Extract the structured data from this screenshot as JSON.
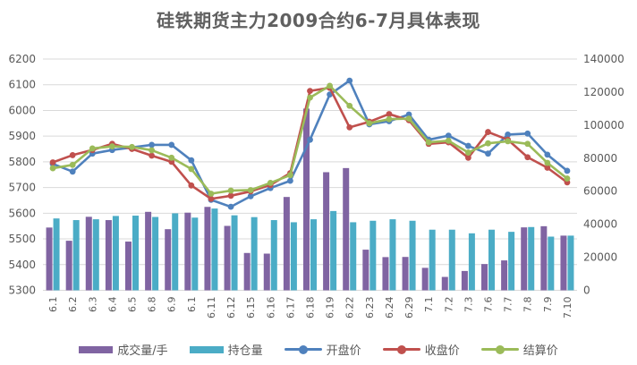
{
  "chart_data": {
    "type": "combo-bar-line",
    "title": "硅铁期货主力2009合约6-7月具体表现",
    "categories": [
      "6.1",
      "6.2",
      "6.3",
      "6.4",
      "6.5",
      "6.8",
      "6.9",
      "6.1",
      "6.11",
      "6.12",
      "6.15",
      "6.16",
      "6.17",
      "6.18",
      "6.19",
      "6.22",
      "6.23",
      "6.24",
      "6.29",
      "7.1",
      "7.2",
      "7.3",
      "7.6",
      "7.7",
      "7.8",
      "7.9",
      "7.10"
    ],
    "series": [
      {
        "key": "volume",
        "name": "成交量/手",
        "type": "bar",
        "axis": "right",
        "color": "#8064A2",
        "values": [
          38000,
          30000,
          44500,
          42500,
          29500,
          47500,
          37000,
          47000,
          50500,
          39000,
          22600,
          22200,
          56500,
          110000,
          71500,
          74000,
          24600,
          20100,
          20200,
          13600,
          8100,
          11700,
          15900,
          18100,
          38100,
          38800,
          33100
        ]
      },
      {
        "key": "open-interest",
        "name": "持仓量",
        "type": "bar",
        "axis": "right",
        "color": "#4BACC6",
        "values": [
          43500,
          42500,
          43000,
          45000,
          45200,
          44400,
          46600,
          44000,
          49500,
          45400,
          44300,
          42500,
          41200,
          43000,
          48000,
          41200,
          42100,
          43000,
          42100,
          36700,
          36700,
          34500,
          36700,
          35400,
          38300,
          32500,
          33100
        ]
      },
      {
        "key": "open",
        "name": "开盘价",
        "type": "line",
        "axis": "left",
        "color": "#4F81BD",
        "values": [
          5792,
          5762,
          5832,
          5846,
          5856,
          5866,
          5866,
          5806,
          5652,
          5625,
          5666,
          5698,
          5726,
          5886,
          6062,
          6116,
          5946,
          5958,
          5984,
          5886,
          5902,
          5862,
          5832,
          5906,
          5910,
          5828,
          5765
        ]
      },
      {
        "key": "close",
        "name": "收盘价",
        "type": "line",
        "axis": "left",
        "color": "#C0504D",
        "values": [
          5798,
          5826,
          5846,
          5870,
          5850,
          5824,
          5800,
          5708,
          5656,
          5668,
          5685,
          5710,
          5756,
          6076,
          6088,
          5934,
          5956,
          5986,
          5962,
          5870,
          5876,
          5816,
          5916,
          5886,
          5818,
          5777,
          5720
        ]
      },
      {
        "key": "settle",
        "name": "结算价",
        "type": "line",
        "axis": "left",
        "color": "#9BBB59",
        "values": [
          5775,
          5788,
          5852,
          5860,
          5858,
          5845,
          5816,
          5772,
          5676,
          5688,
          5690,
          5718,
          5748,
          6050,
          6096,
          6018,
          5950,
          5966,
          5968,
          5876,
          5882,
          5836,
          5872,
          5880,
          5870,
          5796,
          5735
        ]
      }
    ],
    "left_axis": {
      "min": 5300,
      "max": 6200,
      "step": 100
    },
    "right_axis": {
      "min": 0,
      "max": 140000,
      "step": 20000
    },
    "grid": true,
    "legend_position": "bottom",
    "axis_label_color": "#595959",
    "gridline_color": "#d9d9d9"
  }
}
